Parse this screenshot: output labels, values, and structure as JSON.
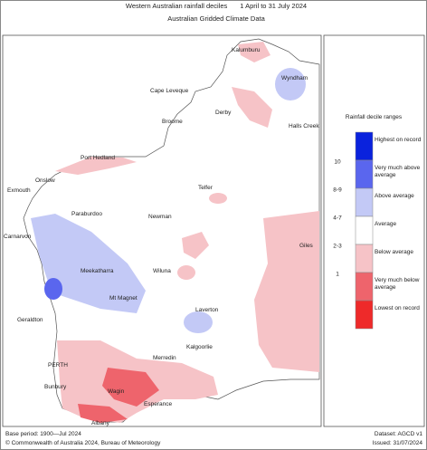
{
  "header": {
    "title": "Western Australian rainfall deciles",
    "dates": "1 April to 31 July 2024",
    "subtitle": "Australian Gridded Climate Data"
  },
  "places": [
    {
      "name": "Kalumburu"
    },
    {
      "name": "Wyndham"
    },
    {
      "name": "Cape Leveque"
    },
    {
      "name": "Derby"
    },
    {
      "name": "Broome"
    },
    {
      "name": "Halls Creek"
    },
    {
      "name": "Port Hedland"
    },
    {
      "name": "Onslow"
    },
    {
      "name": "Exmouth"
    },
    {
      "name": "Telfer"
    },
    {
      "name": "Paraburdoo"
    },
    {
      "name": "Newman"
    },
    {
      "name": "Carnarvon"
    },
    {
      "name": "Meekatharra"
    },
    {
      "name": "Giles"
    },
    {
      "name": "Wiluna"
    },
    {
      "name": "Mt Magnet"
    },
    {
      "name": "Geraldton"
    },
    {
      "name": "Laverton"
    },
    {
      "name": "Kalgoorlie"
    },
    {
      "name": "Merredin"
    },
    {
      "name": "PERTH"
    },
    {
      "name": "Bunbury"
    },
    {
      "name": "Wagin"
    },
    {
      "name": "Esperance"
    },
    {
      "name": "Albany"
    }
  ],
  "legend": {
    "title": "Rainfall decile ranges",
    "items": [
      {
        "label": "Highest on record",
        "color": "#0a22dd"
      },
      {
        "label": "Very much above average",
        "color": "#5a66ee"
      },
      {
        "label": "Above average",
        "color": "#c3c9f6"
      },
      {
        "label": "Average",
        "color": "#ffffff"
      },
      {
        "label": "Below average",
        "color": "#f6c3c7"
      },
      {
        "label": "Very much below average",
        "color": "#ee646c"
      },
      {
        "label": "Lowest on record",
        "color": "#ee2a2a"
      }
    ],
    "ranges": [
      "10",
      "8-9",
      "4-7",
      "2-3",
      "1"
    ]
  },
  "footer": {
    "base": "Base period: 1900—Jul 2024",
    "dataset": "Dataset: AGCD v1",
    "copyright": "© Commonwealth of Australia 2024, Bureau of Meteorology",
    "issued": "Issued: 31/07/2024"
  }
}
